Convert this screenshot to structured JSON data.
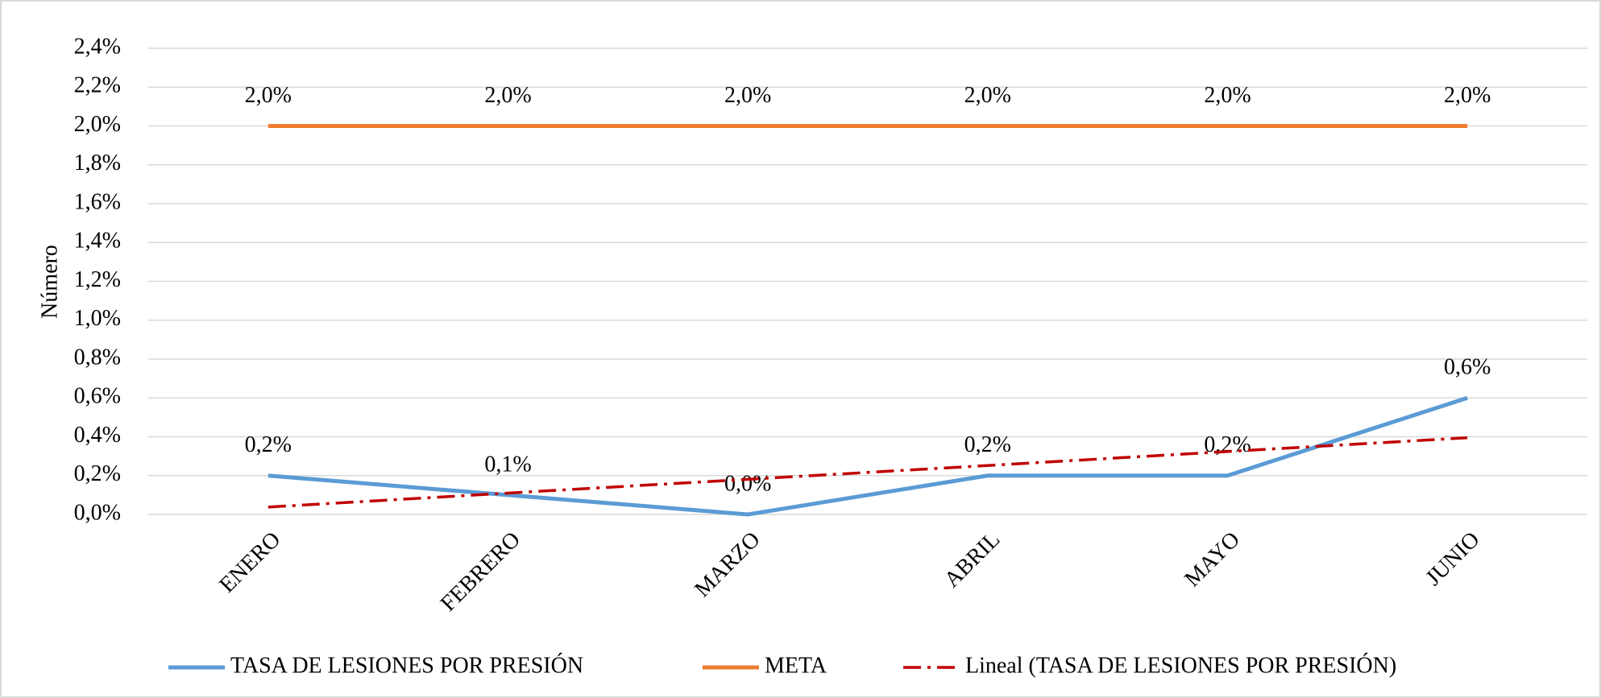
{
  "chart_data": {
    "type": "line",
    "y_label": "Número",
    "categories": [
      "ENERO",
      "FEBRERO",
      "MARZO",
      "ABRIL",
      "MAYO",
      "JUNIO"
    ],
    "series": [
      {
        "name": "TASA DE LESIONES POR PRESIÓN",
        "color": "#5b9bd5",
        "dash": "solid",
        "values": [
          0.2,
          0.1,
          0.0,
          0.2,
          0.2,
          0.6
        ],
        "value_labels": [
          "0,2%",
          "0,1%",
          "0,0%",
          "0,2%",
          "0,2%",
          "0,6%"
        ]
      },
      {
        "name": "META",
        "color": "#ed7d31",
        "dash": "solid",
        "values": [
          2.0,
          2.0,
          2.0,
          2.0,
          2.0,
          2.0
        ],
        "value_labels": [
          "2,0%",
          "2,0%",
          "2,0%",
          "2,0%",
          "2,0%",
          "2,0%"
        ]
      },
      {
        "name": "Lineal (TASA DE LESIONES POR PRESIÓN)",
        "color": "#c00000",
        "dash": "dash-dot",
        "values": [
          0.038,
          0.11,
          0.181,
          0.252,
          0.324,
          0.395
        ]
      }
    ],
    "ylim": [
      0,
      2.4
    ],
    "yticks": [
      {
        "value": 0,
        "label": "0,0%"
      },
      {
        "value": 0.2,
        "label": "0,2%"
      },
      {
        "value": 0.4,
        "label": "0,4%"
      },
      {
        "value": 0.6,
        "label": "0,6%"
      },
      {
        "value": 0.8,
        "label": "0,8%"
      },
      {
        "value": 1.0,
        "label": "1,0%"
      },
      {
        "value": 1.2,
        "label": "1,2%"
      },
      {
        "value": 1.4,
        "label": "1,4%"
      },
      {
        "value": 1.6,
        "label": "1,6%"
      },
      {
        "value": 1.8,
        "label": "1,8%"
      },
      {
        "value": 2.0,
        "label": "2,0%"
      },
      {
        "value": 2.2,
        "label": "2,2%"
      },
      {
        "value": 2.4,
        "label": "2,4%"
      }
    ],
    "grid": true,
    "legend": "bottom"
  }
}
